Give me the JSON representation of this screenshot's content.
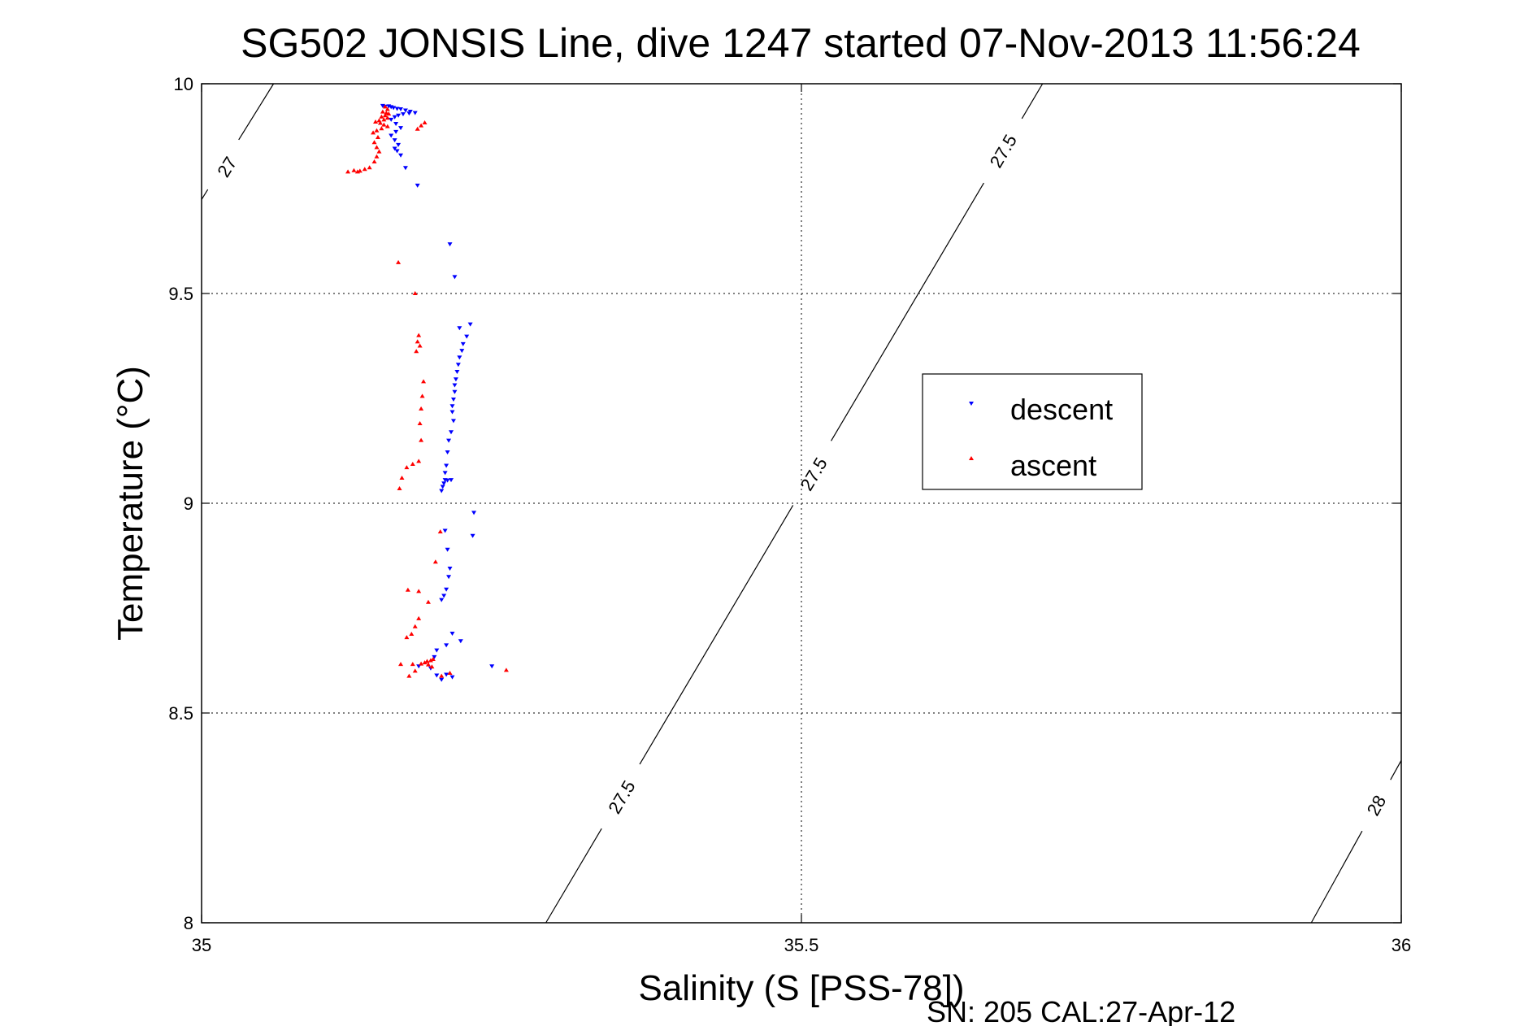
{
  "chart_data": {
    "type": "scatter",
    "title": "SG502 JONSIS Line, dive 1247 started 07-Nov-2013 11:56:24",
    "xlabel": "Salinity (S [PSS-78])",
    "ylabel": "Temperature (°C)",
    "xlim": [
      35,
      36
    ],
    "ylim": [
      8,
      10
    ],
    "x_ticks": [
      35,
      35.5,
      36
    ],
    "x_tick_labels": [
      "35",
      "35.5",
      "36"
    ],
    "y_ticks": [
      8,
      8.5,
      9,
      9.5,
      10
    ],
    "y_tick_labels": [
      "8",
      "8.5",
      "9",
      "9.5",
      "10"
    ],
    "grid": true,
    "legend_position": "right-middle",
    "footer": "SN: 205  CAL:27-Apr-12",
    "series": [
      {
        "name": "descent",
        "color": "#0000ff",
        "marker": "triangle-down",
        "points": [
          [
            35.151,
            9.948
          ],
          [
            35.153,
            9.946
          ],
          [
            35.156,
            9.947
          ],
          [
            35.158,
            9.945
          ],
          [
            35.16,
            9.943
          ],
          [
            35.163,
            9.941
          ],
          [
            35.166,
            9.94
          ],
          [
            35.17,
            9.937
          ],
          [
            35.174,
            9.934
          ],
          [
            35.178,
            9.931
          ],
          [
            35.173,
            9.93
          ],
          [
            35.168,
            9.928
          ],
          [
            35.164,
            9.925
          ],
          [
            35.161,
            9.921
          ],
          [
            35.158,
            9.915
          ],
          [
            35.162,
            9.905
          ],
          [
            35.166,
            9.895
          ],
          [
            35.162,
            9.886
          ],
          [
            35.158,
            9.877
          ],
          [
            35.161,
            9.866
          ],
          [
            35.164,
            9.855
          ],
          [
            35.161,
            9.846
          ],
          [
            35.163,
            9.84
          ],
          [
            35.166,
            9.83
          ],
          [
            35.17,
            9.8
          ],
          [
            35.18,
            9.758
          ],
          [
            35.207,
            9.618
          ],
          [
            35.211,
            9.54
          ],
          [
            35.224,
            9.427
          ],
          [
            35.215,
            9.418
          ],
          [
            35.221,
            9.398
          ],
          [
            35.218,
            9.38
          ],
          [
            35.217,
            9.364
          ],
          [
            35.215,
            9.348
          ],
          [
            35.214,
            9.331
          ],
          [
            35.213,
            9.314
          ],
          [
            35.212,
            9.296
          ],
          [
            35.211,
            9.282
          ],
          [
            35.211,
            9.266
          ],
          [
            35.21,
            9.248
          ],
          [
            35.209,
            9.232
          ],
          [
            35.209,
            9.218
          ],
          [
            35.21,
            9.197
          ],
          [
            35.208,
            9.17
          ],
          [
            35.206,
            9.15
          ],
          [
            35.205,
            9.122
          ],
          [
            35.204,
            9.09
          ],
          [
            35.203,
            9.073
          ],
          [
            35.203,
            9.056
          ],
          [
            35.205,
            9.055
          ],
          [
            35.208,
            9.056
          ],
          [
            35.202,
            9.048
          ],
          [
            35.201,
            9.04
          ],
          [
            35.2,
            9.03
          ],
          [
            35.227,
            8.978
          ],
          [
            35.226,
            8.923
          ],
          [
            35.203,
            8.935
          ],
          [
            35.205,
            8.89
          ],
          [
            35.207,
            8.845
          ],
          [
            35.206,
            8.825
          ],
          [
            35.204,
            8.795
          ],
          [
            35.202,
            8.78
          ],
          [
            35.2,
            8.77
          ],
          [
            35.209,
            8.69
          ],
          [
            35.216,
            8.672
          ],
          [
            35.204,
            8.662
          ],
          [
            35.196,
            8.65
          ],
          [
            35.194,
            8.634
          ],
          [
            35.181,
            8.612
          ],
          [
            35.191,
            8.607
          ],
          [
            35.196,
            8.59
          ],
          [
            35.204,
            8.592
          ],
          [
            35.209,
            8.586
          ],
          [
            35.2,
            8.58
          ],
          [
            35.242,
            8.612
          ]
        ]
      },
      {
        "name": "ascent",
        "color": "#ff0000",
        "marker": "triangle-up",
        "points": [
          [
            35.153,
            9.945
          ],
          [
            35.155,
            9.939
          ],
          [
            35.151,
            9.933
          ],
          [
            35.154,
            9.93
          ],
          [
            35.156,
            9.928
          ],
          [
            35.153,
            9.924
          ],
          [
            35.15,
            9.921
          ],
          [
            35.155,
            9.918
          ],
          [
            35.152,
            9.914
          ],
          [
            35.148,
            9.912
          ],
          [
            35.145,
            9.909
          ],
          [
            35.149,
            9.906
          ],
          [
            35.152,
            9.902
          ],
          [
            35.155,
            9.898
          ],
          [
            35.15,
            9.893
          ],
          [
            35.146,
            9.888
          ],
          [
            35.143,
            9.883
          ],
          [
            35.186,
            9.907
          ],
          [
            35.183,
            9.9
          ],
          [
            35.18,
            9.892
          ],
          [
            35.147,
            9.872
          ],
          [
            35.144,
            9.86
          ],
          [
            35.146,
            9.848
          ],
          [
            35.148,
            9.838
          ],
          [
            35.146,
            9.826
          ],
          [
            35.144,
            9.814
          ],
          [
            35.14,
            9.8
          ],
          [
            35.136,
            9.796
          ],
          [
            35.132,
            9.792
          ],
          [
            35.127,
            9.793
          ],
          [
            35.122,
            9.79
          ],
          [
            35.13,
            9.79
          ],
          [
            35.164,
            9.574
          ],
          [
            35.178,
            9.5
          ],
          [
            35.181,
            9.4
          ],
          [
            35.18,
            9.385
          ],
          [
            35.182,
            9.375
          ],
          [
            35.179,
            9.362
          ],
          [
            35.185,
            9.29
          ],
          [
            35.184,
            9.255
          ],
          [
            35.183,
            9.225
          ],
          [
            35.182,
            9.19
          ],
          [
            35.183,
            9.15
          ],
          [
            35.181,
            9.1
          ],
          [
            35.176,
            9.093
          ],
          [
            35.171,
            9.085
          ],
          [
            35.167,
            9.06
          ],
          [
            35.165,
            9.035
          ],
          [
            35.199,
            8.932
          ],
          [
            35.195,
            8.86
          ],
          [
            35.172,
            8.793
          ],
          [
            35.181,
            8.79
          ],
          [
            35.189,
            8.764
          ],
          [
            35.181,
            8.725
          ],
          [
            35.178,
            8.706
          ],
          [
            35.175,
            8.688
          ],
          [
            35.171,
            8.68
          ],
          [
            35.193,
            8.628
          ],
          [
            35.191,
            8.625
          ],
          [
            35.188,
            8.623
          ],
          [
            35.186,
            8.62
          ],
          [
            35.189,
            8.615
          ],
          [
            35.192,
            8.61
          ],
          [
            35.183,
            8.617
          ],
          [
            35.176,
            8.616
          ],
          [
            35.166,
            8.616
          ],
          [
            35.178,
            8.6
          ],
          [
            35.173,
            8.588
          ],
          [
            35.2,
            8.588
          ],
          [
            35.207,
            8.595
          ],
          [
            35.254,
            8.602
          ]
        ]
      }
    ],
    "contours": [
      {
        "label": "27",
        "points": [
          [
            35.0,
            9.724
          ],
          [
            35.06,
            10.0
          ]
        ],
        "label_positions": [
          [
            35.021,
            9.802
          ]
        ]
      },
      {
        "label": "27.5",
        "points": [
          [
            35.287,
            8.0
          ],
          [
            35.701,
            10.0
          ]
        ],
        "label_positions": [
          [
            35.35,
            8.3
          ],
          [
            35.51,
            9.07
          ],
          [
            35.668,
            9.84
          ]
        ]
      },
      {
        "label": "28",
        "points": [
          [
            35.925,
            8.0
          ],
          [
            36.0,
            8.387
          ]
        ],
        "label_positions": [
          [
            35.979,
            8.28
          ]
        ]
      }
    ]
  }
}
